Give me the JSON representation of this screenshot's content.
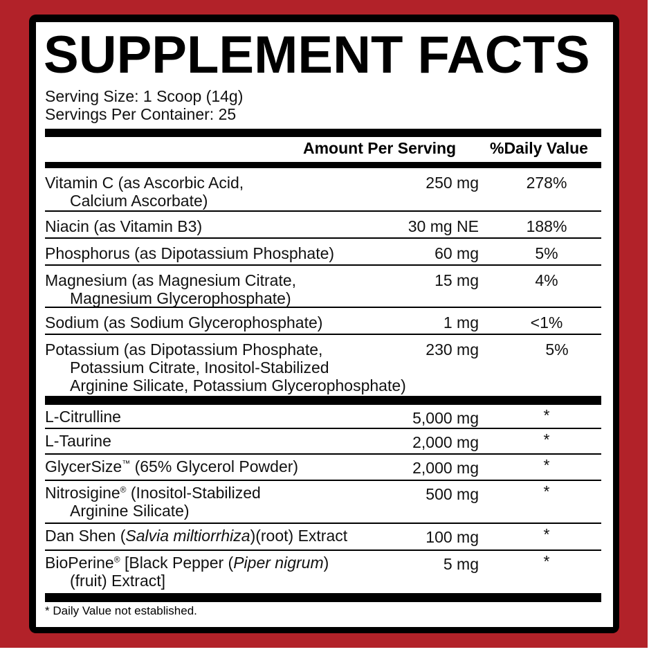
{
  "title": "SUPPLEMENT FACTS",
  "serving_size": "Serving Size: 1 Scoop (14g)",
  "servings_per_container": "Servings Per Container: 25",
  "headers": {
    "amount": "Amount Per Serving",
    "dv": "%Daily Value"
  },
  "vitamins": [
    {
      "name": "Vitamin C (as Ascorbic Acid,",
      "name2": "Calcium Ascorbate)",
      "amount": "250 mg",
      "dv": "278%"
    },
    {
      "name": "Niacin (as Vitamin B3)",
      "amount": "30 mg NE",
      "dv": "188%"
    },
    {
      "name": "Phosphorus (as Dipotassium Phosphate)",
      "amount": "60 mg",
      "dv": "5%"
    },
    {
      "name": "Magnesium (as Magnesium Citrate,",
      "name2": "Magnesium Glycerophosphate)",
      "amount": "15 mg",
      "dv": "4%"
    },
    {
      "name": "Sodium (as Sodium Glycerophosphate)",
      "amount": "1 mg",
      "dv": "<1%"
    },
    {
      "name": "Potassium (as Dipotassium Phosphate,",
      "name2": "Potassium Citrate, Inositol-Stabilized",
      "name3": "Arginine Silicate, Potassium Glycerophosphate)",
      "amount": "230 mg",
      "dv": "5%"
    }
  ],
  "ingredients": [
    {
      "name": "L-Citrulline",
      "amount": "5,000 mg",
      "dv": "*"
    },
    {
      "name": "L-Taurine",
      "amount": "2,000 mg",
      "dv": "*"
    },
    {
      "name": "GlycerSize",
      "mark": "™",
      "rest": " (65% Glycerol Powder)",
      "amount": "2,000 mg",
      "dv": "*"
    },
    {
      "name": "Nitrosigine",
      "mark": "®",
      "rest": " (Inositol-Stabilized",
      "name2": "Arginine Silicate)",
      "amount": "500 mg",
      "dv": "*"
    },
    {
      "name": "Dan Shen (",
      "italic": "Salvia miltiorrhiza",
      "rest": ")(root) Extract",
      "amount": "100 mg",
      "dv": "*"
    },
    {
      "name": "BioPerine",
      "mark": "®",
      "rest": " [Black Pepper (",
      "italic": "Piper nigrum",
      "rest2": ")",
      "name2": "(fruit) Extract]",
      "amount": "5 mg",
      "dv": "*"
    }
  ],
  "footnote": "* Daily Value not established.",
  "colors": {
    "background": "#b22229",
    "frame": "#000000",
    "panel": "#ffffff"
  }
}
